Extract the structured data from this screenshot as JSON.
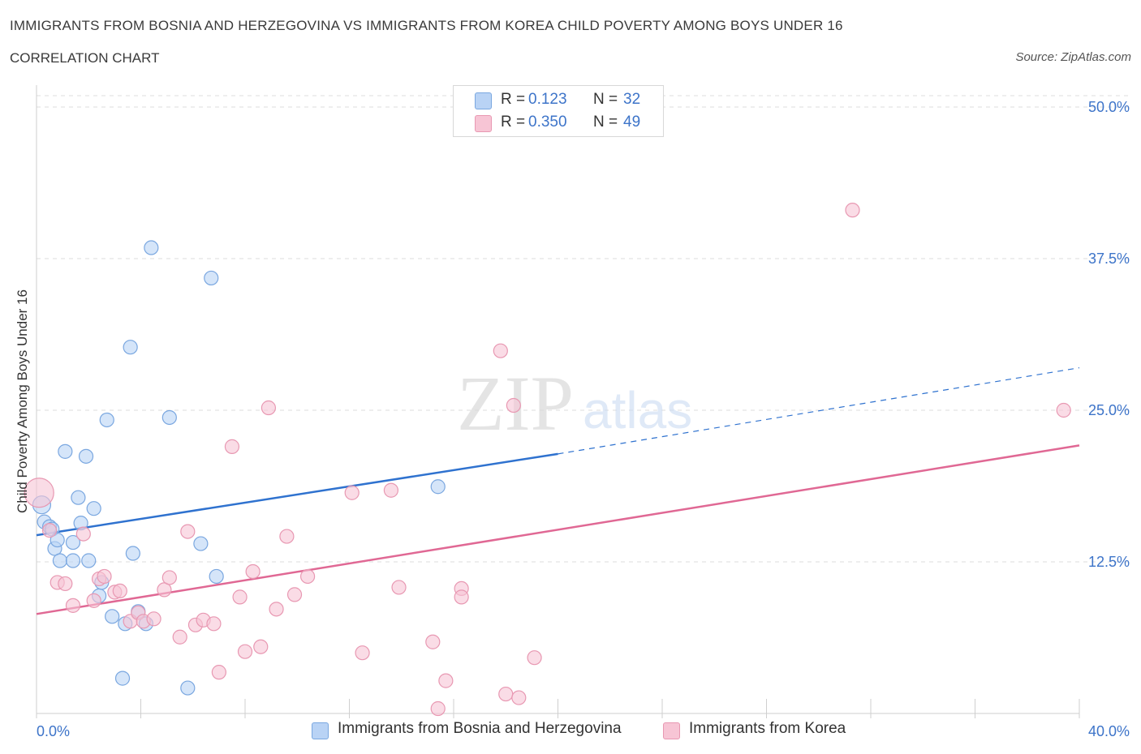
{
  "header": {
    "title": "IMMIGRANTS FROM BOSNIA AND HERZEGOVINA VS IMMIGRANTS FROM KOREA CHILD POVERTY AMONG BOYS UNDER 16",
    "subtitle": "CORRELATION CHART",
    "source": "Source: ZipAtlas.com"
  },
  "watermark": {
    "zip": "ZIP",
    "atlas": "atlas"
  },
  "colors": {
    "blue_fill": "#b9d3f5",
    "blue_stroke": "#7aa7e0",
    "blue_line": "#2f72cf",
    "pink_fill": "#f7c5d5",
    "pink_stroke": "#e898b2",
    "pink_line": "#e06894",
    "axis_value": "#3d74c9",
    "grid": "#dddddd"
  },
  "legend": {
    "rows": [
      {
        "r_label": "R =",
        "r_value": "0.123",
        "n_label": "N =",
        "n_value": "32"
      },
      {
        "r_label": "R =",
        "r_value": "0.350",
        "n_label": "N =",
        "n_value": "49"
      }
    ],
    "placement": "top-center"
  },
  "bottom_legend": {
    "items": [
      {
        "label": "Immigrants from Bosnia and Herzegovina"
      },
      {
        "label": "Immigrants from Korea"
      }
    ]
  },
  "chart_data": {
    "type": "scatter",
    "title": "IMMIGRANTS FROM BOSNIA AND HERZEGOVINA VS IMMIGRANTS FROM KOREA CHILD POVERTY AMONG BOYS UNDER 16",
    "subtitle": "CORRELATION CHART",
    "xlabel": "",
    "ylabel": "Child Poverty Among Boys Under 16",
    "xlim": [
      0,
      40
    ],
    "ylim": [
      0,
      50
    ],
    "x_tick_labels": [
      "0.0%",
      "40.0%"
    ],
    "y_ticks": [
      12.5,
      25,
      37.5,
      50
    ],
    "y_tick_labels": [
      "12.5%",
      "25.0%",
      "37.5%",
      "50.0%"
    ],
    "grid": true,
    "series": [
      {
        "name": "Immigrants from Bosnia and Herzegovina",
        "color": "#b9d3f5",
        "trend": {
          "x": [
            0,
            20
          ],
          "y": [
            14.7,
            21.4
          ],
          "extends_dashed_to": [
            40,
            28.5
          ]
        },
        "points": [
          [
            0.2,
            17.2
          ],
          [
            0.3,
            15.8
          ],
          [
            0.5,
            15.4
          ],
          [
            0.6,
            15.2
          ],
          [
            0.7,
            13.6
          ],
          [
            0.8,
            14.3
          ],
          [
            0.9,
            12.6
          ],
          [
            1.1,
            21.6
          ],
          [
            1.4,
            14.1
          ],
          [
            1.4,
            12.6
          ],
          [
            1.6,
            17.8
          ],
          [
            1.7,
            15.7
          ],
          [
            1.9,
            21.2
          ],
          [
            2.0,
            12.6
          ],
          [
            2.2,
            16.9
          ],
          [
            2.4,
            9.7
          ],
          [
            2.5,
            10.8
          ],
          [
            2.7,
            24.2
          ],
          [
            2.9,
            8.0
          ],
          [
            3.3,
            2.9
          ],
          [
            3.4,
            7.4
          ],
          [
            3.6,
            30.2
          ],
          [
            3.7,
            13.2
          ],
          [
            3.9,
            8.4
          ],
          [
            4.2,
            7.4
          ],
          [
            4.4,
            38.4
          ],
          [
            5.1,
            24.4
          ],
          [
            5.8,
            2.1
          ],
          [
            6.3,
            14.0
          ],
          [
            6.7,
            35.9
          ],
          [
            6.9,
            11.3
          ],
          [
            15.4,
            18.7
          ]
        ]
      },
      {
        "name": "Immigrants from Korea",
        "color": "#f7c5d5",
        "trend": {
          "x": [
            0,
            40
          ],
          "y": [
            8.2,
            22.1
          ]
        },
        "points": [
          [
            0.1,
            18.2
          ],
          [
            0.5,
            15.1
          ],
          [
            0.8,
            10.8
          ],
          [
            1.1,
            10.7
          ],
          [
            1.4,
            8.9
          ],
          [
            1.8,
            14.8
          ],
          [
            2.2,
            9.3
          ],
          [
            2.4,
            11.1
          ],
          [
            2.6,
            11.3
          ],
          [
            3.0,
            10.0
          ],
          [
            3.2,
            10.1
          ],
          [
            3.6,
            7.6
          ],
          [
            3.9,
            8.3
          ],
          [
            4.1,
            7.6
          ],
          [
            4.5,
            7.8
          ],
          [
            4.9,
            10.2
          ],
          [
            5.1,
            11.2
          ],
          [
            5.5,
            6.3
          ],
          [
            5.8,
            15.0
          ],
          [
            6.1,
            7.3
          ],
          [
            6.4,
            7.7
          ],
          [
            6.8,
            7.4
          ],
          [
            7.0,
            3.4
          ],
          [
            7.5,
            22.0
          ],
          [
            7.8,
            9.6
          ],
          [
            8.0,
            5.1
          ],
          [
            8.3,
            11.7
          ],
          [
            8.6,
            5.5
          ],
          [
            8.9,
            25.2
          ],
          [
            9.2,
            8.6
          ],
          [
            9.6,
            14.6
          ],
          [
            9.9,
            9.8
          ],
          [
            10.4,
            11.3
          ],
          [
            12.1,
            18.2
          ],
          [
            12.5,
            5.0
          ],
          [
            13.6,
            18.4
          ],
          [
            13.9,
            10.4
          ],
          [
            15.2,
            5.9
          ],
          [
            15.4,
            0.4
          ],
          [
            15.7,
            2.7
          ],
          [
            16.3,
            10.3
          ],
          [
            16.3,
            9.6
          ],
          [
            17.8,
            29.9
          ],
          [
            18.0,
            1.6
          ],
          [
            18.3,
            25.4
          ],
          [
            18.5,
            1.3
          ],
          [
            19.1,
            4.6
          ],
          [
            31.3,
            41.5
          ],
          [
            39.4,
            25.0
          ]
        ]
      }
    ]
  }
}
